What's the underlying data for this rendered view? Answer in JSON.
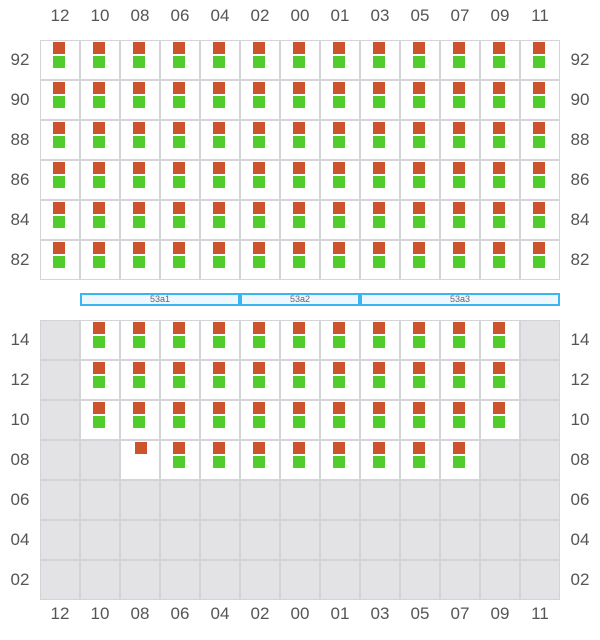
{
  "columns": [
    "12",
    "10",
    "08",
    "06",
    "04",
    "02",
    "00",
    "01",
    "03",
    "05",
    "07",
    "09",
    "11"
  ],
  "legend_colors": {
    "top_marker": "#cc532c",
    "bottom_marker": "#52cc2c",
    "unavailable": "#e3e3e6",
    "band_border": "#3ab4f2"
  },
  "cell_codes": {
    "b": "both markers",
    "o": "top marker only",
    "x": "unavailable"
  },
  "upper_section": {
    "rows": [
      {
        "label": "92",
        "cells": "bbbbbbbbbbbbb"
      },
      {
        "label": "90",
        "cells": "bbbbbbbbbbbbb"
      },
      {
        "label": "88",
        "cells": "bbbbbbbbbbbbb"
      },
      {
        "label": "86",
        "cells": "bbbbbbbbbbbbb"
      },
      {
        "label": "84",
        "cells": "bbbbbbbbbbbbb"
      },
      {
        "label": "82",
        "cells": "bbbbbbbbbbbbb"
      }
    ]
  },
  "bands": [
    {
      "label": "53a1",
      "from": "10",
      "to": "04"
    },
    {
      "label": "53a2",
      "from": "02",
      "to": "01"
    },
    {
      "label": "53a3",
      "from": "03",
      "to": "11"
    }
  ],
  "lower_section": {
    "rows": [
      {
        "label": "14",
        "cells": "xbbbbbbbbbbbx"
      },
      {
        "label": "12",
        "cells": "xbbbbbbbbbbbx"
      },
      {
        "label": "10",
        "cells": "xbbbbbbbbbbbx"
      },
      {
        "label": "08",
        "cells": "xxobbbbbbbbxx"
      },
      {
        "label": "06",
        "cells": "xxxxxxxxxxxxx"
      },
      {
        "label": "04",
        "cells": "xxxxxxxxxxxxx"
      },
      {
        "label": "02",
        "cells": "xxxxxxxxxxxxx"
      }
    ]
  }
}
